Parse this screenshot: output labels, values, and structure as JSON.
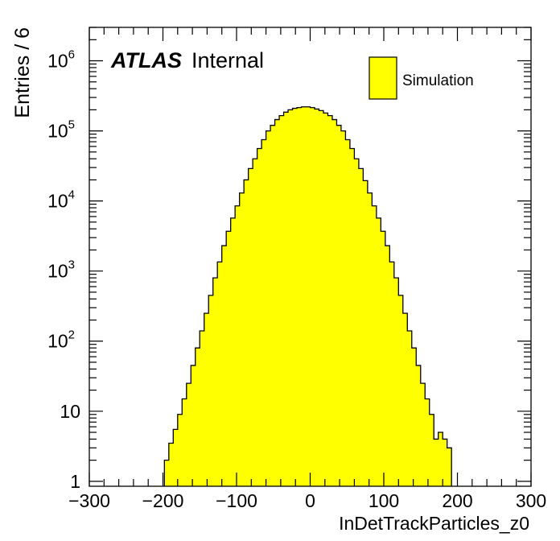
{
  "chart_data": {
    "type": "histogram",
    "xlabel": "InDetTrackParticles_z0",
    "ylabel": "Entries / 6",
    "atlas_label": "ATLAS",
    "atlas_status": "Internal",
    "legend": {
      "placement": "top-right",
      "entries": [
        "Simulation"
      ]
    },
    "fill_color": "#ffff00",
    "line_color": "#000000",
    "xlim": [
      -300,
      300
    ],
    "ylim": [
      0.85,
      3000000
    ],
    "log_y": true,
    "x_ticks": [
      "−300",
      "−200",
      "−100",
      "0",
      "100",
      "200",
      "300"
    ],
    "y_ticks": [
      {
        "base": "1",
        "exp": ""
      },
      {
        "base": "10",
        "exp": ""
      },
      {
        "base": "10",
        "exp": "2"
      },
      {
        "base": "10",
        "exp": "3"
      },
      {
        "base": "10",
        "exp": "4"
      },
      {
        "base": "10",
        "exp": "5"
      },
      {
        "base": "10",
        "exp": "6"
      }
    ],
    "bin_width": 6,
    "bin_low_edges": [
      -198,
      -192,
      -186,
      -180,
      -174,
      -168,
      -162,
      -156,
      -150,
      -144,
      -138,
      -132,
      -126,
      -120,
      -114,
      -108,
      -102,
      -96,
      -90,
      -84,
      -78,
      -72,
      -66,
      -60,
      -54,
      -48,
      -42,
      -36,
      -30,
      -24,
      -18,
      -12,
      -6,
      0,
      6,
      12,
      18,
      24,
      30,
      36,
      42,
      48,
      54,
      60,
      66,
      72,
      78,
      84,
      90,
      96,
      102,
      108,
      114,
      120,
      126,
      132,
      138,
      144,
      150,
      156,
      162,
      168,
      174,
      180,
      186
    ],
    "values": [
      2,
      3.5,
      5.5,
      9,
      15,
      25,
      45,
      80,
      140,
      250,
      450,
      800,
      1350,
      2300,
      3700,
      5700,
      8500,
      13000,
      20000,
      29000,
      40000,
      56000,
      75000,
      100000,
      120000,
      145000,
      165000,
      185000,
      200000,
      210000,
      215000,
      220000,
      220000,
      215000,
      205000,
      195000,
      180000,
      165000,
      145000,
      120000,
      100000,
      75000,
      56000,
      40000,
      29000,
      19500,
      13000,
      8500,
      5700,
      3700,
      2300,
      1350,
      800,
      450,
      250,
      140,
      80,
      45,
      25,
      15,
      9,
      4,
      5,
      4,
      3
    ]
  }
}
